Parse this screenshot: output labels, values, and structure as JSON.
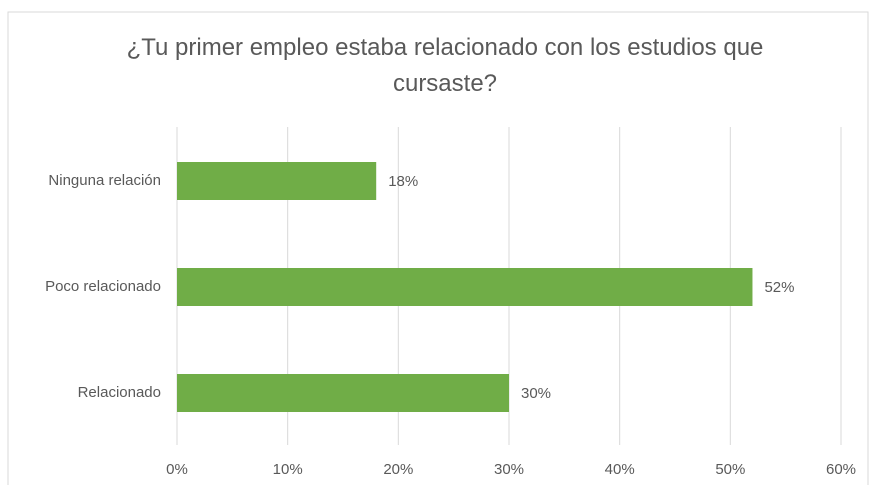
{
  "chart_data": {
    "type": "bar",
    "orientation": "horizontal",
    "title": "¿Tu primer empleo estaba relacionado con los estudios que cursaste?",
    "categories": [
      "Ninguna relación",
      "Poco relacionado",
      "Relacionado"
    ],
    "values": [
      18,
      52,
      30
    ],
    "value_labels": [
      "18%",
      "52%",
      "30%"
    ],
    "color": "#70ad47",
    "xlim": [
      0,
      60
    ],
    "xticks": [
      {
        "value": 0,
        "label": "0%"
      },
      {
        "value": 10,
        "label": "10%"
      },
      {
        "value": 20,
        "label": "20%"
      },
      {
        "value": 30,
        "label": "30%"
      },
      {
        "value": 40,
        "label": "40%"
      },
      {
        "value": 50,
        "label": "50%"
      },
      {
        "value": 60,
        "label": "60%"
      }
    ],
    "grid": true
  }
}
